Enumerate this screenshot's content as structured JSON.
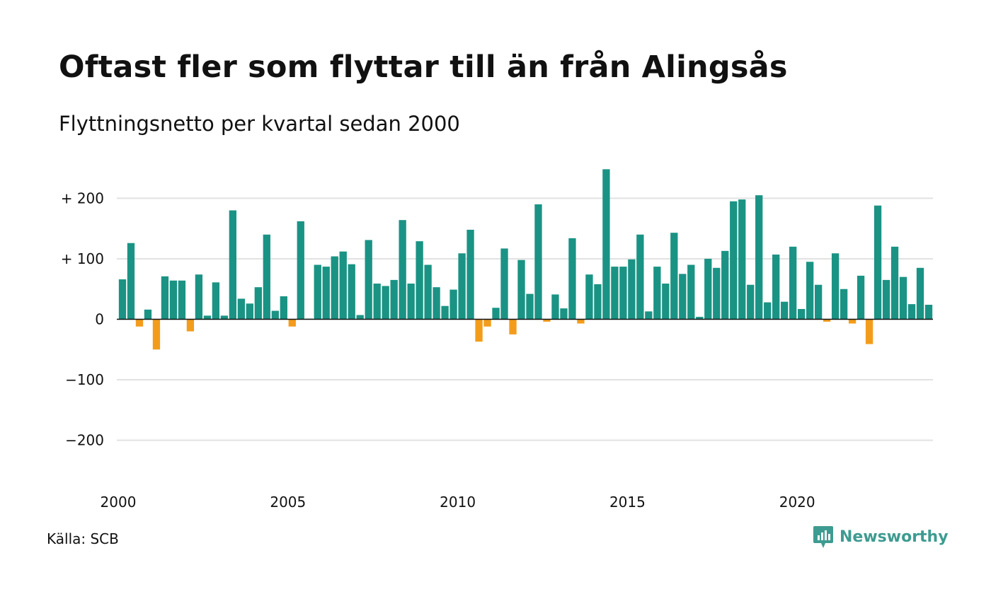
{
  "title": "Oftast fler som flyttar till än från Alingsås",
  "subtitle": "Flyttningsnetto per kvartal sedan 2000",
  "source": "Källa: SCB",
  "brand": {
    "name": "Newsworthy",
    "icon": "newsworthy-logo-icon",
    "color": "#3e9b91"
  },
  "colors": {
    "positive": "#1a9384",
    "negative": "#f39c1c",
    "grid": "#e2e2e2",
    "zero_line": "#111111"
  },
  "chart_data": {
    "type": "bar",
    "title": "Oftast fler som flyttar till än från Alingsås",
    "subtitle": "Flyttningsnetto per kvartal sedan 2000",
    "xlabel": "",
    "ylabel": "",
    "ylim": [
      -250,
      250
    ],
    "y_ticks": [
      {
        "value": 200,
        "label": "+ 200"
      },
      {
        "value": 100,
        "label": "+ 100"
      },
      {
        "value": 0,
        "label": "0"
      },
      {
        "value": -100,
        "label": "−100"
      },
      {
        "value": -200,
        "label": "−200"
      }
    ],
    "x_ticks": [
      {
        "value": 2000,
        "label": "2000"
      },
      {
        "value": 2005,
        "label": "2005"
      },
      {
        "value": 2010,
        "label": "2010"
      },
      {
        "value": 2015,
        "label": "2015"
      },
      {
        "value": 2020,
        "label": "2020"
      }
    ],
    "grid": true,
    "legend": "none",
    "start_year": 2000,
    "periods_per_year": 4,
    "values": [
      66,
      126,
      -12,
      16,
      -50,
      71,
      64,
      64,
      -20,
      74,
      6,
      61,
      6,
      180,
      34,
      26,
      53,
      140,
      14,
      38,
      -12,
      162,
      1,
      90,
      87,
      104,
      112,
      91,
      7,
      131,
      59,
      55,
      65,
      164,
      59,
      129,
      90,
      53,
      22,
      49,
      109,
      148,
      -37,
      -12,
      19,
      117,
      -25,
      98,
      42,
      190,
      -4,
      41,
      18,
      134,
      -7,
      74,
      58,
      248,
      87,
      87,
      99,
      140,
      13,
      87,
      59,
      143,
      75,
      90,
      4,
      100,
      85,
      113,
      195,
      198,
      57,
      205,
      28,
      107,
      29,
      120,
      17,
      95,
      57,
      -4,
      109,
      50,
      -7,
      72,
      -41,
      188,
      65,
      120,
      70,
      25,
      85,
      24
    ]
  }
}
